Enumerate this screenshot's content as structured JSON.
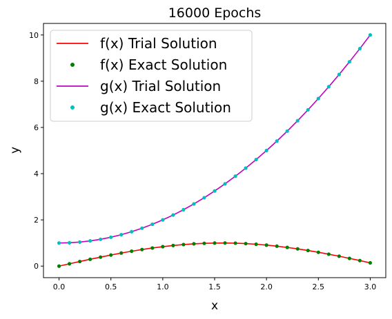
{
  "chart_data": {
    "type": "line",
    "title": "16000 Epochs",
    "xlabel": "x",
    "ylabel": "y",
    "xlim": [
      -0.15,
      3.15
    ],
    "ylim": [
      -0.5,
      10.5
    ],
    "xticks": [
      0.0,
      0.5,
      1.0,
      1.5,
      2.0,
      2.5,
      3.0
    ],
    "xtick_labels": [
      "0.0",
      "0.5",
      "1.0",
      "1.5",
      "2.0",
      "2.5",
      "3.0"
    ],
    "yticks": [
      0,
      2,
      4,
      6,
      8,
      10
    ],
    "ytick_labels": [
      "0",
      "2",
      "4",
      "6",
      "8",
      "10"
    ],
    "legend_position": "top-left",
    "grid": false,
    "x": [
      0.0,
      0.1,
      0.2,
      0.3,
      0.4,
      0.5,
      0.6,
      0.7,
      0.8,
      0.9,
      1.0,
      1.1,
      1.2,
      1.3,
      1.4,
      1.5,
      1.6,
      1.7,
      1.8,
      1.9,
      2.0,
      2.1,
      2.2,
      2.3,
      2.4,
      2.5,
      2.6,
      2.7,
      2.8,
      2.9,
      3.0
    ],
    "series": [
      {
        "name": "f(x) Trial Solution",
        "style": "line",
        "color": "#ff0000",
        "values": [
          0.0,
          0.1,
          0.199,
          0.296,
          0.389,
          0.479,
          0.565,
          0.644,
          0.717,
          0.783,
          0.841,
          0.891,
          0.932,
          0.964,
          0.985,
          0.997,
          1.0,
          0.992,
          0.974,
          0.946,
          0.909,
          0.863,
          0.808,
          0.746,
          0.675,
          0.598,
          0.516,
          0.427,
          0.335,
          0.239,
          0.141
        ]
      },
      {
        "name": "f(x) Exact Solution",
        "style": "dots",
        "color": "#008000",
        "values": [
          0.0,
          0.1,
          0.199,
          0.296,
          0.389,
          0.479,
          0.565,
          0.644,
          0.717,
          0.783,
          0.841,
          0.891,
          0.932,
          0.964,
          0.985,
          0.997,
          1.0,
          0.992,
          0.974,
          0.946,
          0.909,
          0.863,
          0.808,
          0.746,
          0.675,
          0.598,
          0.516,
          0.427,
          0.335,
          0.239,
          0.141
        ]
      },
      {
        "name": "g(x) Trial Solution",
        "style": "line",
        "color": "#bf00bf",
        "values": [
          1.0,
          1.01,
          1.04,
          1.09,
          1.16,
          1.25,
          1.36,
          1.49,
          1.64,
          1.81,
          2.0,
          2.21,
          2.44,
          2.69,
          2.96,
          3.25,
          3.56,
          3.89,
          4.24,
          4.61,
          5.0,
          5.41,
          5.84,
          6.29,
          6.76,
          7.25,
          7.76,
          8.29,
          8.84,
          9.41,
          10.0
        ]
      },
      {
        "name": "g(x) Exact Solution",
        "style": "dots",
        "color": "#00bfbf",
        "values": [
          1.0,
          1.01,
          1.04,
          1.09,
          1.16,
          1.25,
          1.36,
          1.49,
          1.64,
          1.81,
          2.0,
          2.21,
          2.44,
          2.69,
          2.96,
          3.25,
          3.56,
          3.89,
          4.24,
          4.61,
          5.0,
          5.41,
          5.84,
          6.29,
          6.76,
          7.25,
          7.76,
          8.29,
          8.84,
          9.41,
          10.0
        ]
      }
    ]
  }
}
